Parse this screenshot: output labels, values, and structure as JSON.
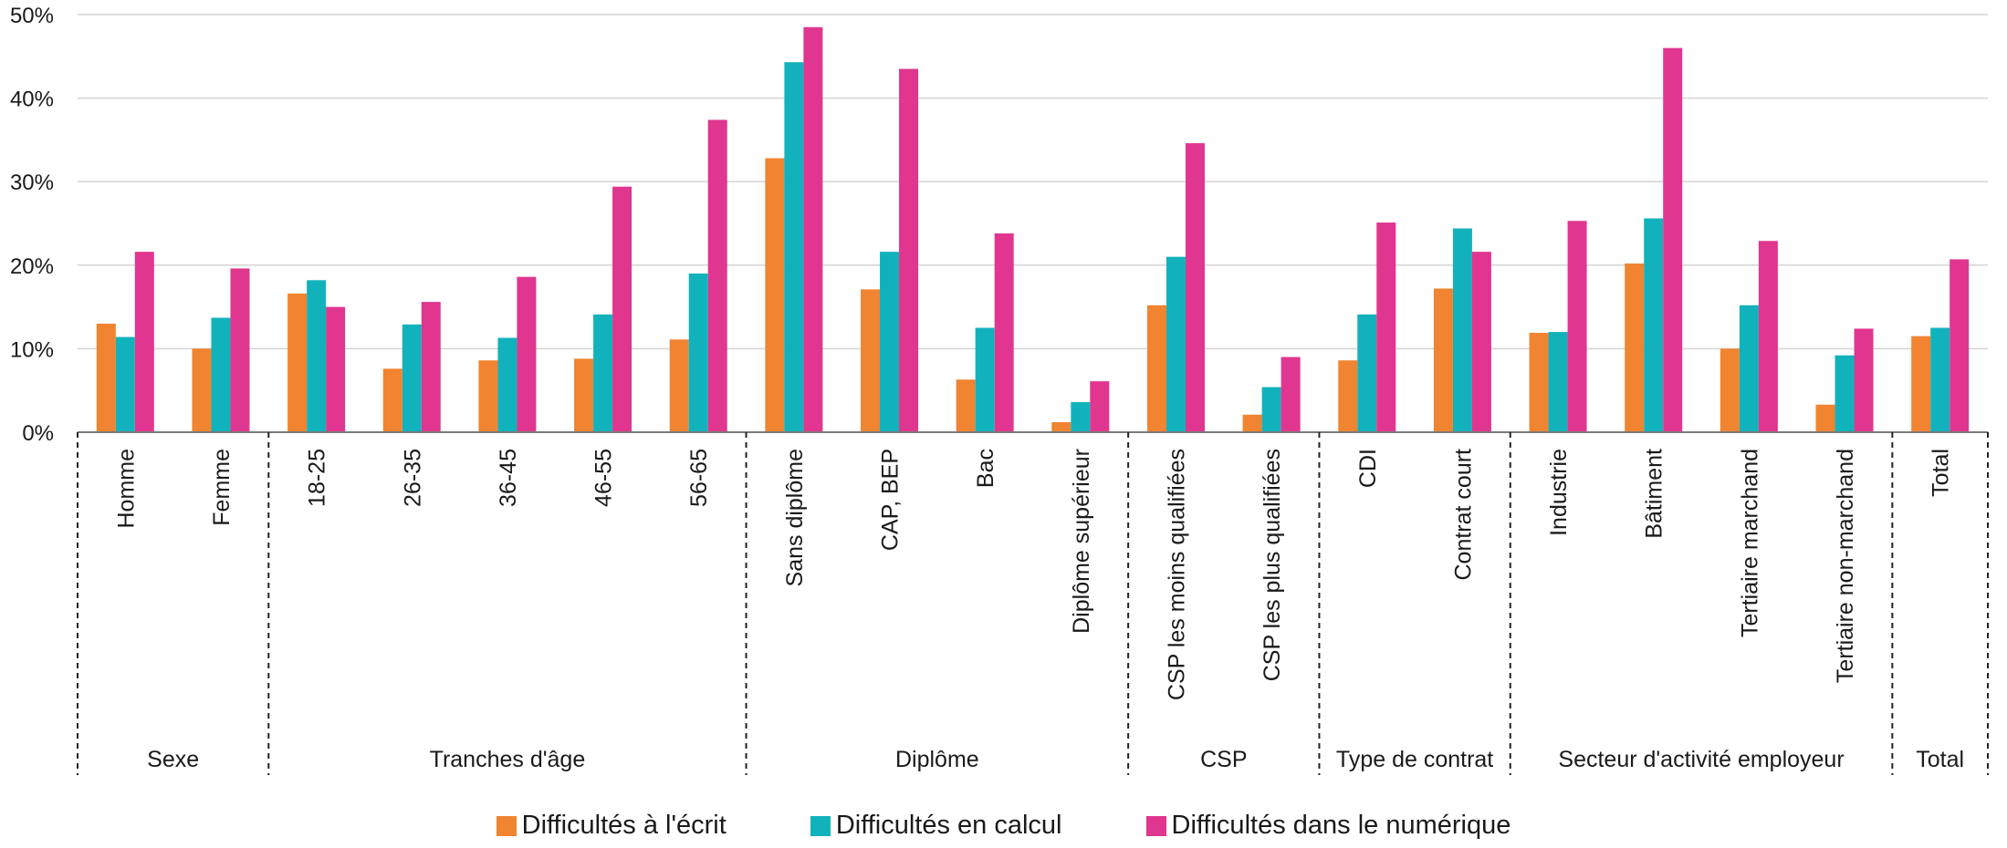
{
  "chart_data": {
    "type": "bar",
    "title": "",
    "xlabel": "",
    "ylabel": "",
    "ylim": [
      0,
      50
    ],
    "y_ticks": [
      "0%",
      "10%",
      "20%",
      "30%",
      "40%",
      "50%"
    ],
    "y_tick_values": [
      0,
      10,
      20,
      30,
      40,
      50
    ],
    "grid": "horizontal",
    "legend_position": "bottom",
    "categories": [
      "Homme",
      "Femme",
      "18-25",
      "26-35",
      "36-45",
      "46-55",
      "56-65",
      "Sans diplôme",
      "CAP, BEP",
      "Bac",
      "Diplôme supérieur",
      "CSP les moins qualifiées",
      "CSP les plus qualifiées",
      "CDI",
      "Contrat court",
      "Industrie",
      "Bâtiment",
      "Tertiaire marchand",
      "Tertiaire non-marchand",
      "Total"
    ],
    "groups": [
      {
        "label": "Sexe",
        "categories": [
          "Homme",
          "Femme"
        ]
      },
      {
        "label": "Tranches d'âge",
        "categories": [
          "18-25",
          "26-35",
          "36-45",
          "46-55",
          "56-65"
        ]
      },
      {
        "label": "Diplôme",
        "categories": [
          "Sans diplôme",
          "CAP, BEP",
          "Bac",
          "Diplôme supérieur"
        ]
      },
      {
        "label": "CSP",
        "categories": [
          "CSP les moins qualifiées",
          "CSP les plus qualifiées"
        ]
      },
      {
        "label": "Type de contrat",
        "categories": [
          "CDI",
          "Contrat court"
        ]
      },
      {
        "label": "Secteur d'activité employeur",
        "categories": [
          "Industrie",
          "Bâtiment",
          "Tertiaire marchand",
          "Tertiaire non-marchand"
        ]
      },
      {
        "label": "Total",
        "categories": [
          "Total"
        ]
      }
    ],
    "series": [
      {
        "name": "Difficultés à l'écrit",
        "color": "#F08430",
        "values": [
          13.0,
          10.0,
          16.6,
          7.6,
          8.6,
          8.8,
          11.1,
          32.8,
          17.1,
          6.3,
          1.2,
          15.2,
          2.1,
          8.6,
          17.2,
          11.9,
          20.2,
          10.0,
          3.3,
          11.5
        ]
      },
      {
        "name": "Difficultés en calcul",
        "color": "#12B2BD",
        "values": [
          11.4,
          13.7,
          18.2,
          12.9,
          11.3,
          14.1,
          19.0,
          44.3,
          21.6,
          12.5,
          3.6,
          21.0,
          5.4,
          14.1,
          24.4,
          12.0,
          25.6,
          15.2,
          9.2,
          12.5
        ]
      },
      {
        "name": "Difficultés dans le numérique",
        "color": "#E0368F",
        "values": [
          21.6,
          19.6,
          15.0,
          15.6,
          18.6,
          29.4,
          37.4,
          48.5,
          43.5,
          23.8,
          6.1,
          34.6,
          9.0,
          25.1,
          21.6,
          25.3,
          46.0,
          22.9,
          12.4,
          20.7
        ]
      }
    ]
  }
}
